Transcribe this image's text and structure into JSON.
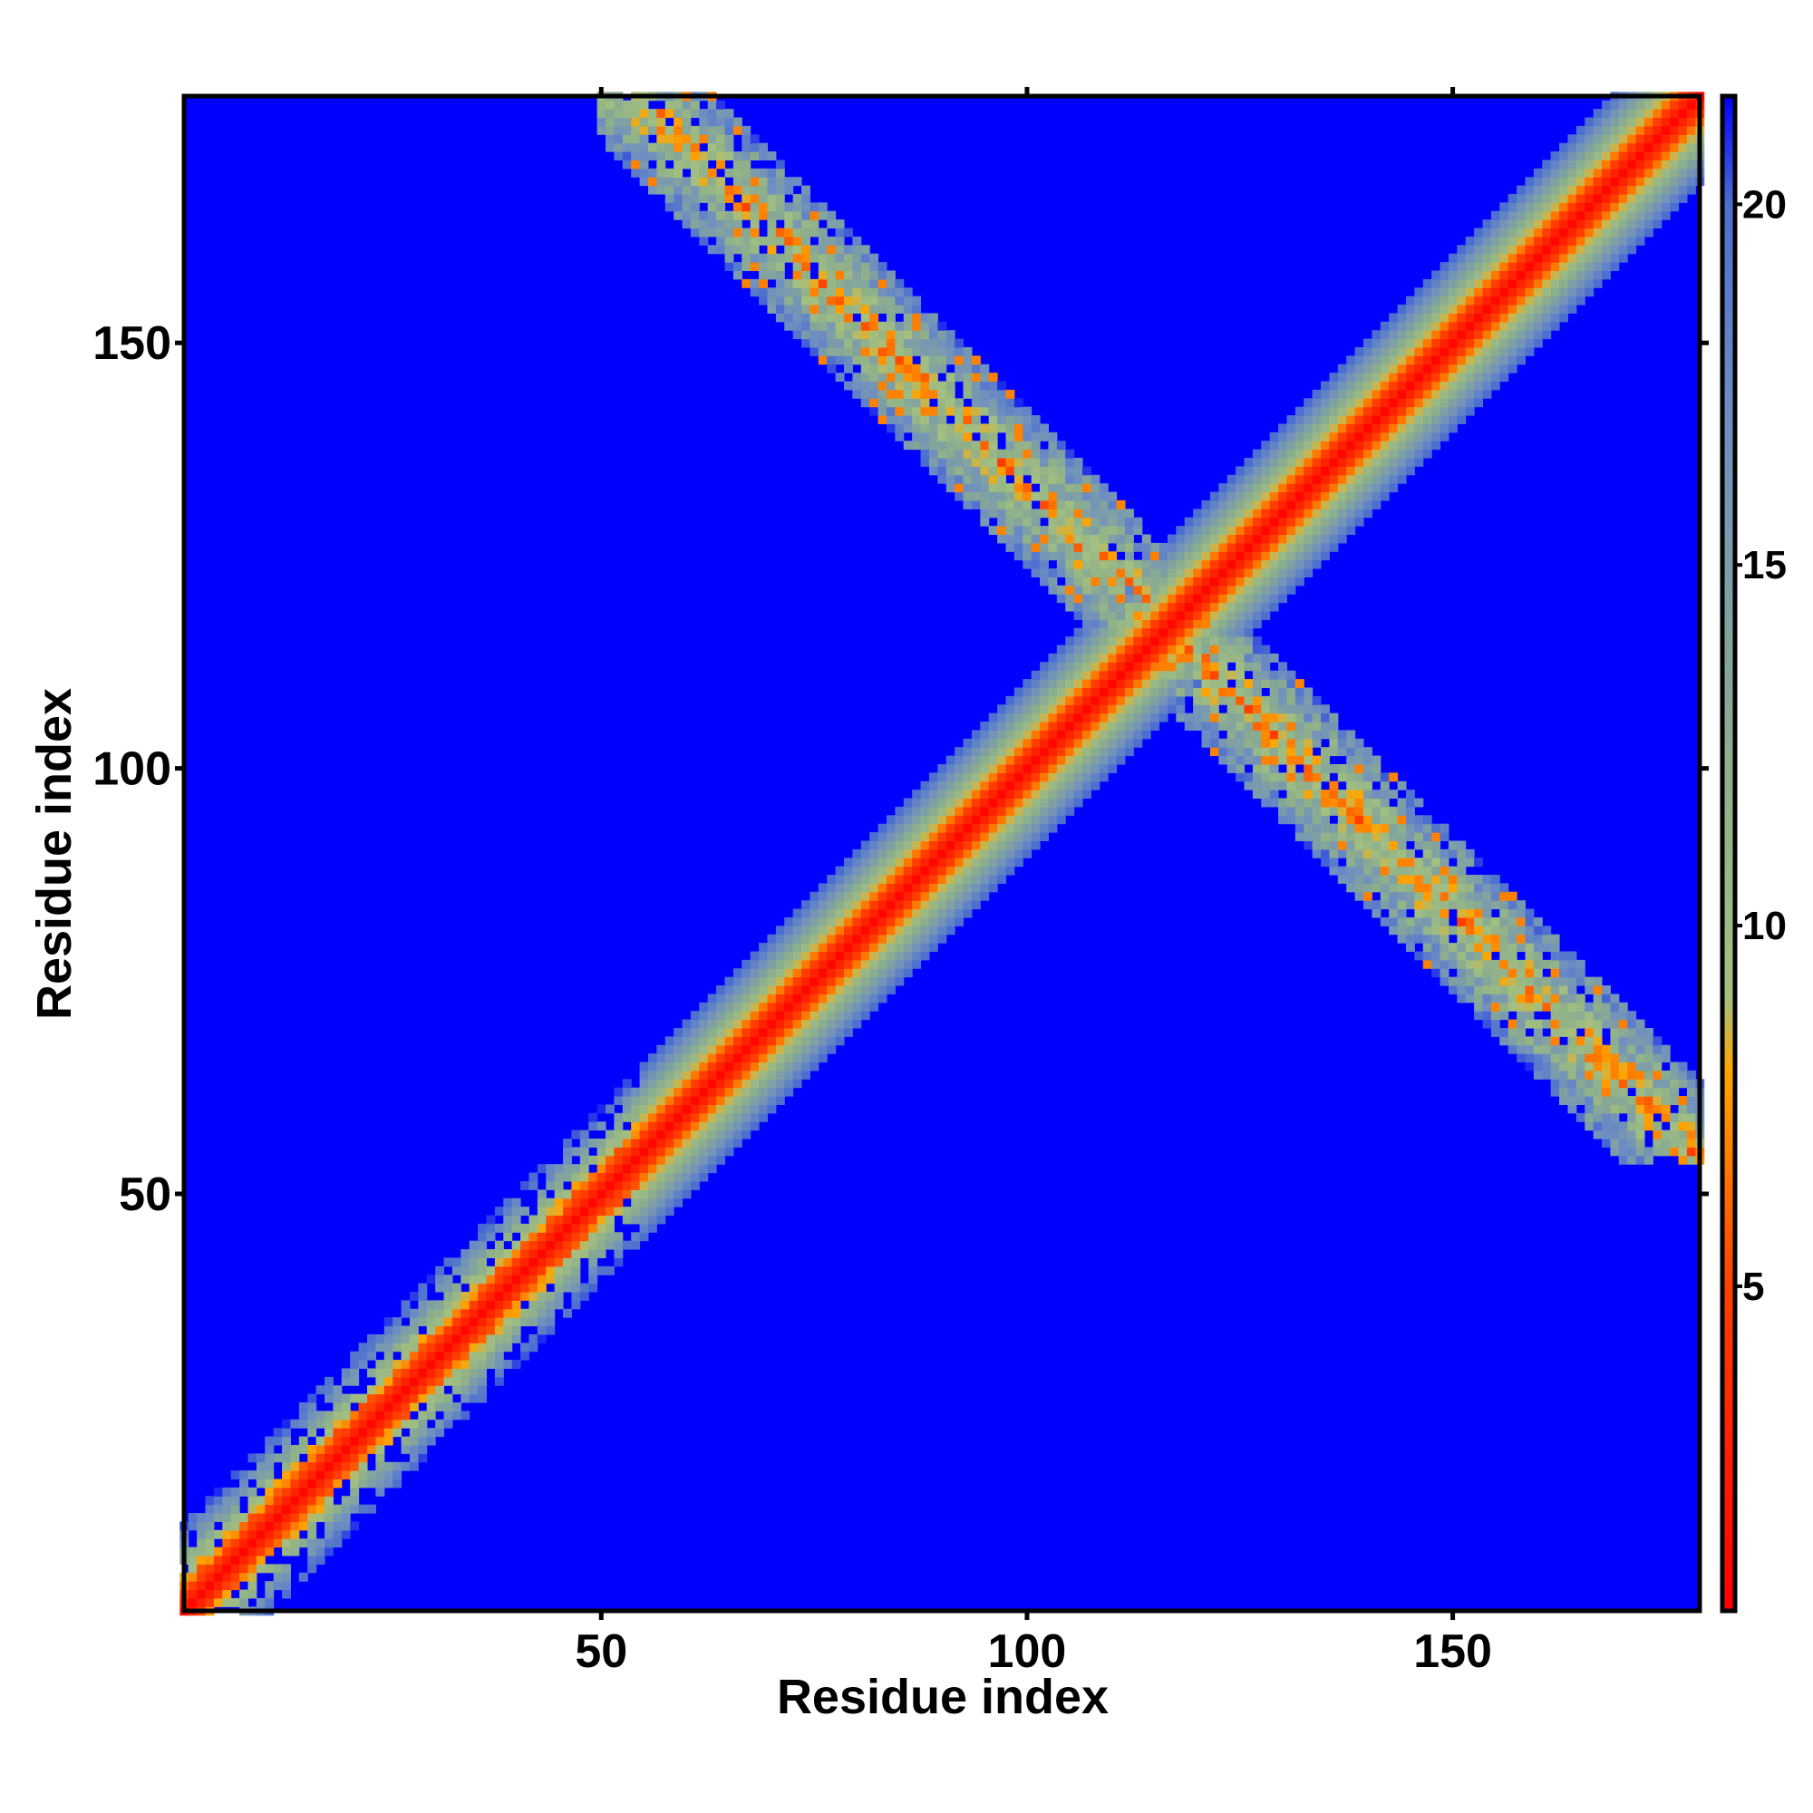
{
  "chart_data": {
    "type": "heatmap",
    "title": "",
    "xlabel": "Residue index",
    "ylabel": "Residue index",
    "xlim": [
      1,
      179
    ],
    "ylim": [
      1,
      179
    ],
    "x_ticks": [
      50,
      100,
      150
    ],
    "y_ticks": [
      50,
      100,
      150
    ],
    "x_tick_labels": [
      "50",
      "100",
      "150"
    ],
    "y_tick_labels": [
      "50",
      "100",
      "150"
    ],
    "colorbar": {
      "range": [
        0.5,
        21.5
      ],
      "ticks": [
        5,
        10,
        15,
        20
      ],
      "tick_labels": [
        "5",
        "10",
        "15",
        "20"
      ],
      "stops": [
        {
          "value": 0.5,
          "color": "#ff0000"
        },
        {
          "value": 5,
          "color": "#ff4000"
        },
        {
          "value": 8,
          "color": "#ffa500"
        },
        {
          "value": 9,
          "color": "#a4c080"
        },
        {
          "value": 12,
          "color": "#8fb08a"
        },
        {
          "value": 17,
          "color": "#6f8fc0"
        },
        {
          "value": 20,
          "color": "#4c6fd0"
        },
        {
          "value": 21.5,
          "color": "#0000ff"
        }
      ],
      "background_color": "#0000ff"
    },
    "matrix_description": {
      "diagonal_band_half_width": 10,
      "cross_band_anti_diagonal_sum": 233,
      "cross_band_x_range": [
        50,
        179
      ],
      "cross_band_half_width": 9
    }
  }
}
